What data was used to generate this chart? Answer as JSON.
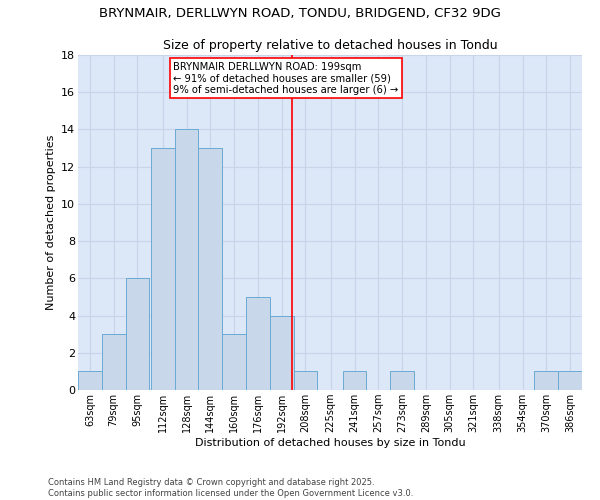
{
  "title_line1": "BRYNMAIR, DERLLWYN ROAD, TONDU, BRIDGEND, CF32 9DG",
  "title_line2": "Size of property relative to detached houses in Tondu",
  "xlabel": "Distribution of detached houses by size in Tondu",
  "ylabel": "Number of detached properties",
  "bin_labels": [
    "63sqm",
    "79sqm",
    "95sqm",
    "112sqm",
    "128sqm",
    "144sqm",
    "160sqm",
    "176sqm",
    "192sqm",
    "208sqm",
    "225sqm",
    "241sqm",
    "257sqm",
    "273sqm",
    "289sqm",
    "305sqm",
    "321sqm",
    "338sqm",
    "354sqm",
    "370sqm",
    "386sqm"
  ],
  "bar_values": [
    1,
    3,
    6,
    13,
    14,
    13,
    3,
    5,
    4,
    1,
    0,
    1,
    0,
    1,
    0,
    0,
    0,
    0,
    0,
    1,
    1
  ],
  "bar_color": "#c8d8ea",
  "bar_edgecolor": "#6aaad4",
  "vline_x_idx": 8,
  "vline_color": "red",
  "annotation_text": "BRYNMAIR DERLLWYN ROAD: 199sqm\n← 91% of detached houses are smaller (59)\n9% of semi-detached houses are larger (6) →",
  "annotation_box_edgecolor": "red",
  "annotation_box_facecolor": "white",
  "grid_color": "#c8d4e8",
  "bg_color": "#dce8f8",
  "ylim": [
    0,
    18
  ],
  "yticks": [
    0,
    2,
    4,
    6,
    8,
    10,
    12,
    14,
    16,
    18
  ],
  "footer_text": "Contains HM Land Registry data © Crown copyright and database right 2025.\nContains public sector information licensed under the Open Government Licence v3.0.",
  "bin_width": 16
}
